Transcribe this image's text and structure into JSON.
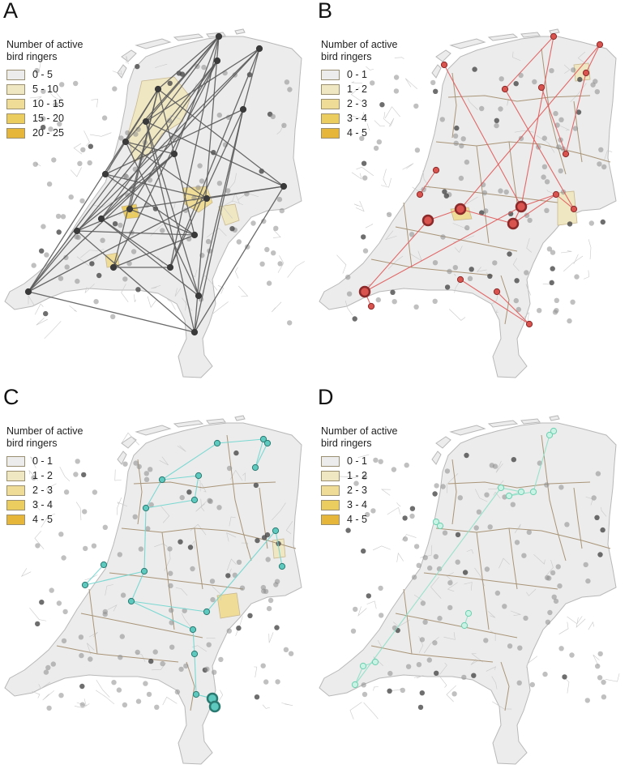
{
  "panels": [
    {
      "letter": "A",
      "legend": {
        "title_line1": "Number of active",
        "title_line2": "bird ringers",
        "items": [
          "0 - 5",
          "5 - 10",
          "10 - 15",
          "15 - 20",
          "20 - 25"
        ]
      },
      "line_color": "#5a5a5a",
      "highlight_color": "#3a3a3a",
      "highlight_fill": "#3a3a3a"
    },
    {
      "letter": "B",
      "legend": {
        "title_line1": "Number of active",
        "title_line2": "bird ringers",
        "items": [
          "0 - 1",
          "1 - 2",
          "2 - 3",
          "3 - 4",
          "4 - 5"
        ]
      },
      "line_color": "#e05a5a",
      "highlight_color": "#8a2a2a",
      "highlight_fill": "#d9534f"
    },
    {
      "letter": "C",
      "legend": {
        "title_line1": "Number of active",
        "title_line2": "bird ringers",
        "items": [
          "0 - 1",
          "1 - 2",
          "2 - 3",
          "3 - 4",
          "4 - 5"
        ]
      },
      "line_color": "#6fd6cf",
      "highlight_color": "#2a7a72",
      "highlight_fill": "#5ec9be"
    },
    {
      "letter": "D",
      "legend": {
        "title_line1": "Number of active",
        "title_line2": "bird ringers",
        "items": [
          "0 - 1",
          "1 - 2",
          "2 - 3",
          "3 - 4",
          "4 - 5"
        ]
      },
      "line_color": "#8ee0c8",
      "highlight_color": "#6ccfb0",
      "highlight_fill": "#c9f3e4"
    }
  ],
  "legend_colors": [
    "#ececec",
    "#efe6c2",
    "#efdc96",
    "#ebcc5e",
    "#e5b63a"
  ],
  "map_fill": "#ececec",
  "border_color": "#a99578",
  "dot_color": "#8c8c8c"
}
